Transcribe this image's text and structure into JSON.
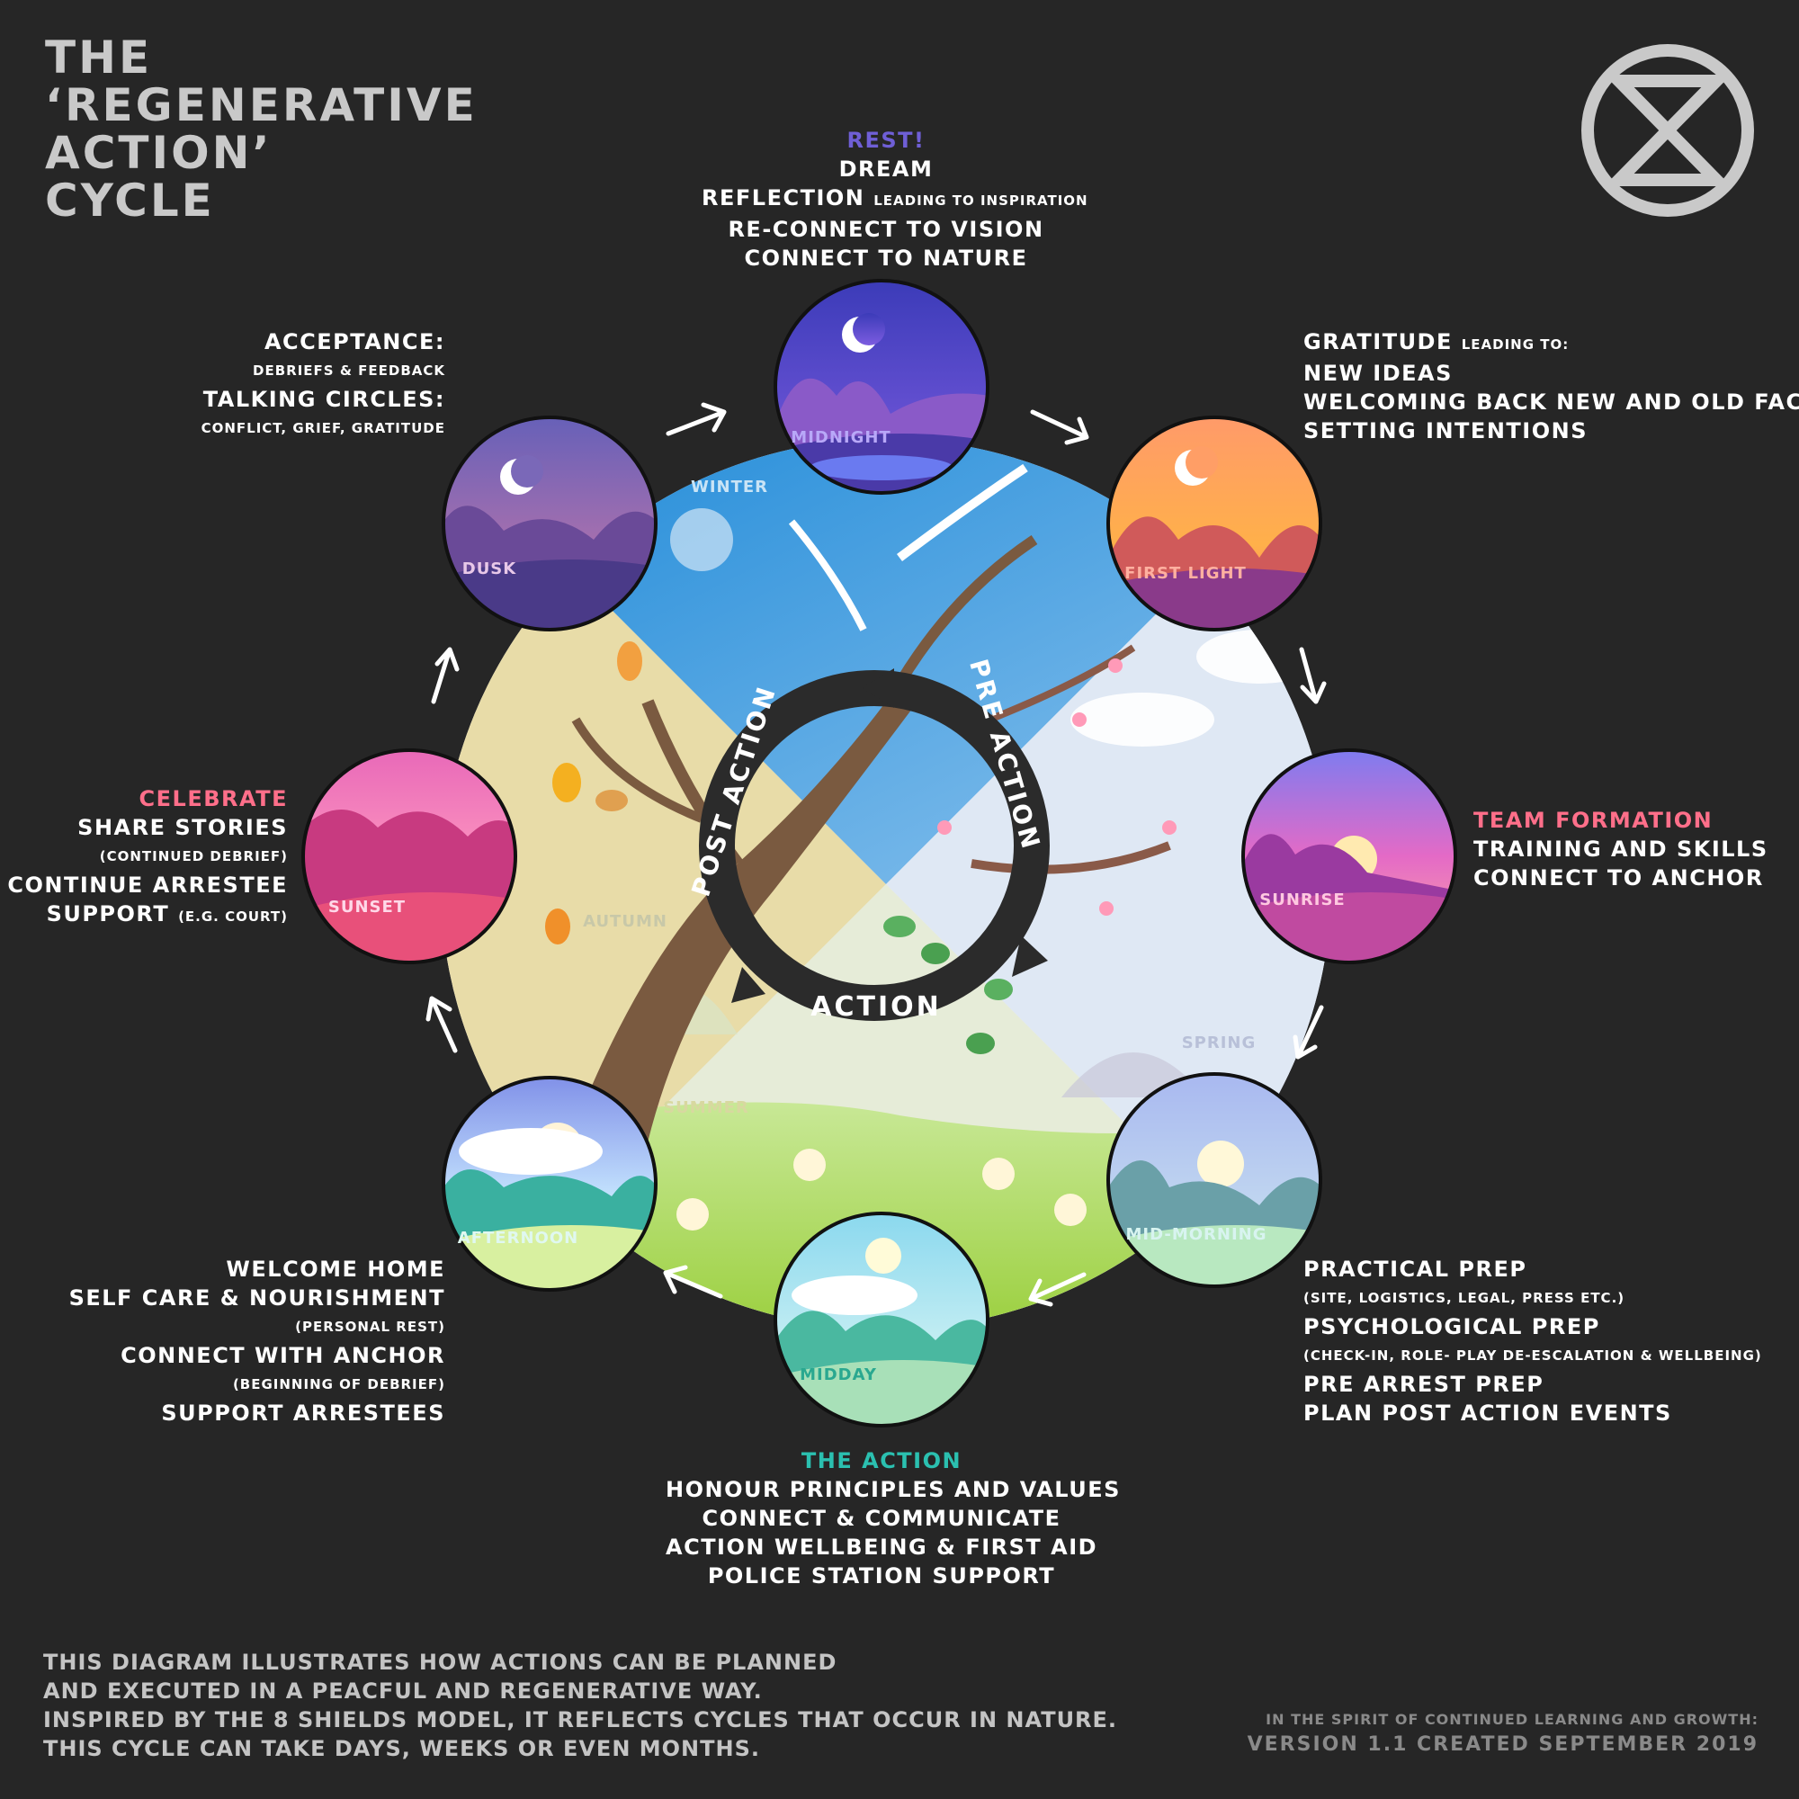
{
  "title": {
    "line1": "THE",
    "line2": "‘REGENERATIVE",
    "line3": "ACTION’",
    "line4": "CYCLE"
  },
  "cycle_ring": {
    "pre_action": "PRE ACTION",
    "action": "ACTION",
    "post_action": "POST ACTION"
  },
  "seasons": {
    "winter": "WINTER",
    "spring": "SPRING",
    "summer": "SUMMER",
    "autumn": "AUTUMN"
  },
  "scenes": {
    "midnight": "MIDNIGHT",
    "first_light": "FIRST LIGHT",
    "sunrise": "SUNRISE",
    "mid_morning": "MID-MORNING",
    "midday": "MIDDAY",
    "afternoon": "AFTERNOON",
    "sunset": "SUNSET",
    "dusk": "DUSK"
  },
  "blocks": {
    "rest": {
      "heading": "REST!",
      "l1": "DREAM",
      "l2a": "REFLECTION",
      "l2b": "LEADING TO INSPIRATION",
      "l3": "RE-CONNECT TO VISION",
      "l4": "CONNECT TO NATURE"
    },
    "gratitude": {
      "l1a": "GRATITUDE",
      "l1b": "LEADING TO:",
      "l2": "NEW IDEAS",
      "l3": "WELCOMING BACK NEW AND OLD FACES",
      "l4": "SETTING INTENTIONS"
    },
    "team": {
      "heading": "TEAM FORMATION",
      "l1": "TRAINING AND SKILLS",
      "l2": "CONNECT TO ANCHOR"
    },
    "prep": {
      "l1": "PRACTICAL PREP",
      "l2": "(SITE, LOGISTICS, LEGAL, PRESS ETC.)",
      "l3": "PSYCHOLOGICAL PREP",
      "l4": "(CHECK-IN, ROLE- PLAY DE-ESCALATION & WELLBEING)",
      "l5": "PRE ARREST PREP",
      "l6": "PLAN POST ACTION EVENTS"
    },
    "action": {
      "heading": "THE ACTION",
      "l1": "HONOUR PRINCIPLES AND VALUES",
      "l2": "CONNECT & COMMUNICATE",
      "l3": "ACTION WELLBEING & FIRST AID",
      "l4": "POLICE STATION SUPPORT"
    },
    "welcome": {
      "l1": "WELCOME HOME",
      "l2": "SELF CARE & NOURISHMENT",
      "l3": "(PERSONAL REST)",
      "l4": "CONNECT WITH ANCHOR",
      "l5": "(BEGINNING OF DEBRIEF)",
      "l6": "SUPPORT ARRESTEES"
    },
    "celebrate": {
      "heading": "CELEBRATE",
      "l1": "SHARE STORIES",
      "l2": "(CONTINUED DEBRIEF)",
      "l3": "CONTINUE ARRESTEE",
      "l4a": "SUPPORT",
      "l4b": "(E.G. COURT)"
    },
    "acceptance": {
      "l1": "ACCEPTANCE:",
      "l2": "DEBRIEFS & FEEDBACK",
      "l3": "TALKING CIRCLES:",
      "l4": "CONFLICT, GRIEF, GRATITUDE"
    }
  },
  "footer": {
    "left": {
      "l1": "THIS DIAGRAM ILLUSTRATES HOW ACTIONS CAN BE PLANNED",
      "l2": "AND EXECUTED IN A PEACFUL AND REGENERATIVE WAY.",
      "l3": "INSPIRED BY THE 8 SHIELDS MODEL, IT REFLECTS CYCLES THAT OCCUR IN NATURE.",
      "l4": "THIS CYCLE CAN TAKE DAYS, WEEKS OR EVEN MONTHS."
    },
    "right": {
      "l1": "IN THE SPIRIT OF CONTINUED LEARNING AND GROWTH:",
      "l2": "VERSION 1.1 CREATED SEPTEMBER 2019"
    }
  },
  "logo": {
    "icon": "extinction-hourglass-icon"
  },
  "colors": {
    "background": "#262626",
    "title": "#c9c9c9",
    "rest": "#6f5fd6",
    "celebrate": "#ff6f8a",
    "team": "#ff6f8a",
    "action": "#2bc0b0"
  }
}
